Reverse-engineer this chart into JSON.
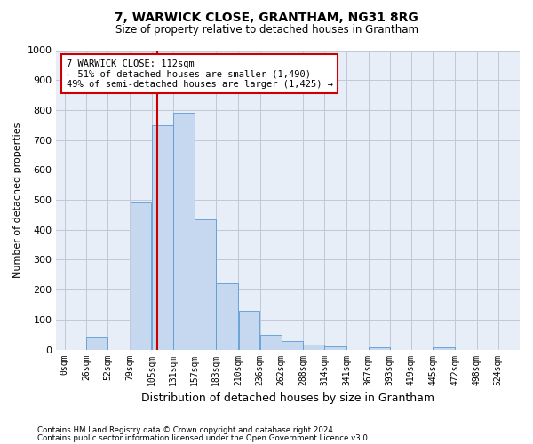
{
  "title": "7, WARWICK CLOSE, GRANTHAM, NG31 8RG",
  "subtitle": "Size of property relative to detached houses in Grantham",
  "xlabel": "Distribution of detached houses by size in Grantham",
  "ylabel": "Number of detached properties",
  "categories": [
    "0sqm",
    "26sqm",
    "52sqm",
    "79sqm",
    "105sqm",
    "131sqm",
    "157sqm",
    "183sqm",
    "210sqm",
    "236sqm",
    "262sqm",
    "288sqm",
    "314sqm",
    "341sqm",
    "367sqm",
    "393sqm",
    "419sqm",
    "445sqm",
    "472sqm",
    "498sqm",
    "524sqm"
  ],
  "values": [
    0,
    40,
    0,
    490,
    750,
    790,
    435,
    220,
    130,
    50,
    28,
    15,
    10,
    0,
    8,
    0,
    0,
    8,
    0,
    0,
    0
  ],
  "bar_color": "#c5d8f0",
  "bar_edge_color": "#5b9bd5",
  "property_line_x": 112,
  "annotation_text": "7 WARWICK CLOSE: 112sqm\n← 51% of detached houses are smaller (1,490)\n49% of semi-detached houses are larger (1,425) →",
  "annotation_box_color": "#ffffff",
  "annotation_box_edge": "#cc0000",
  "vline_color": "#cc0000",
  "ylim": [
    0,
    1000
  ],
  "yticks": [
    0,
    100,
    200,
    300,
    400,
    500,
    600,
    700,
    800,
    900,
    1000
  ],
  "grid_color": "#c0c8d8",
  "bg_color": "#e8eef8",
  "footer_line1": "Contains HM Land Registry data © Crown copyright and database right 2024.",
  "footer_line2": "Contains public sector information licensed under the Open Government Licence v3.0."
}
